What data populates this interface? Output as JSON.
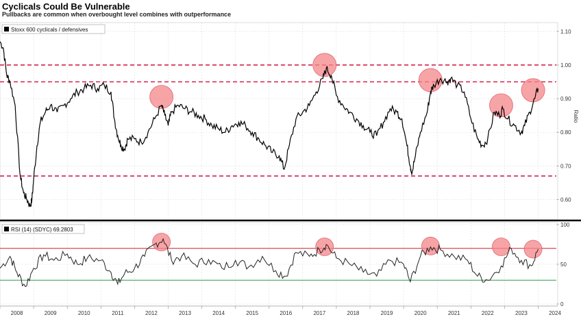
{
  "header": {
    "title": "Cyclicals Could Be Vulnerable",
    "subtitle": "Pullbacks are common when overbought level combines with outperformance"
  },
  "chart_data": [
    {
      "type": "line",
      "legend": "Stoxx 600 cyclicals / defensives",
      "legend_placement": "top-left",
      "ylabel": "Ratio",
      "ylim": [
        0.55,
        1.12
      ],
      "yticks": [
        "0.60",
        "0.70",
        "0.80",
        "0.90",
        "1.00",
        "1.10"
      ],
      "reference_lines": [
        1.0,
        0.95,
        0.67
      ],
      "reference_color": "#d6204e",
      "line_color": "#000000",
      "highlight_color": "#f4868a",
      "highlights": [
        {
          "x": 2012.8,
          "y": 0.905
        },
        {
          "x": 2017.65,
          "y": 1.0
        },
        {
          "x": 2020.8,
          "y": 0.955
        },
        {
          "x": 2022.9,
          "y": 0.88
        },
        {
          "x": 2023.85,
          "y": 0.925
        }
      ],
      "series": [
        {
          "x": [
            2008.0,
            2008.1,
            2008.2,
            2008.3,
            2008.45,
            2008.6,
            2008.7,
            2008.8,
            2008.9,
            2008.95,
            2009.0,
            2009.1,
            2009.2,
            2009.35,
            2009.5,
            2009.7,
            2009.9,
            2010.1,
            2010.3,
            2010.5,
            2010.7,
            2010.9,
            2011.1,
            2011.3,
            2011.4,
            2011.5,
            2011.6,
            2011.7,
            2011.8,
            2012.0,
            2012.2,
            2012.4,
            2012.6,
            2012.8,
            2012.9,
            2013.0,
            2013.1,
            2013.3,
            2013.5,
            2013.7,
            2013.9,
            2014.1,
            2014.3,
            2014.5,
            2014.7,
            2014.9,
            2015.1,
            2015.3,
            2015.5,
            2015.7,
            2015.9,
            2016.1,
            2016.3,
            2016.45,
            2016.6,
            2016.8,
            2017.0,
            2017.2,
            2017.4,
            2017.6,
            2017.7,
            2017.85,
            2018.0,
            2018.2,
            2018.4,
            2018.6,
            2018.8,
            2019.0,
            2019.2,
            2019.4,
            2019.6,
            2019.8,
            2019.95,
            2020.1,
            2020.2,
            2020.25,
            2020.35,
            2020.5,
            2020.7,
            2020.8,
            2020.9,
            2021.1,
            2021.3,
            2021.4,
            2021.6,
            2021.8,
            2022.0,
            2022.2,
            2022.35,
            2022.5,
            2022.7,
            2022.85,
            2022.95,
            2023.1,
            2023.3,
            2023.5,
            2023.6,
            2023.75,
            2023.9,
            2024.0
          ],
          "y": [
            1.07,
            1.05,
            0.97,
            0.95,
            0.88,
            0.67,
            0.62,
            0.6,
            0.58,
            0.6,
            0.66,
            0.76,
            0.83,
            0.86,
            0.88,
            0.86,
            0.88,
            0.9,
            0.92,
            0.93,
            0.94,
            0.93,
            0.94,
            0.92,
            0.84,
            0.79,
            0.76,
            0.75,
            0.78,
            0.78,
            0.77,
            0.8,
            0.84,
            0.88,
            0.85,
            0.82,
            0.86,
            0.88,
            0.87,
            0.86,
            0.85,
            0.84,
            0.82,
            0.81,
            0.8,
            0.82,
            0.83,
            0.82,
            0.8,
            0.78,
            0.76,
            0.74,
            0.73,
            0.69,
            0.76,
            0.84,
            0.86,
            0.88,
            0.92,
            0.96,
            0.99,
            0.97,
            0.91,
            0.88,
            0.86,
            0.84,
            0.82,
            0.8,
            0.79,
            0.83,
            0.87,
            0.86,
            0.84,
            0.76,
            0.7,
            0.68,
            0.73,
            0.8,
            0.86,
            0.92,
            0.94,
            0.96,
            0.95,
            0.96,
            0.94,
            0.92,
            0.84,
            0.78,
            0.76,
            0.78,
            0.86,
            0.85,
            0.87,
            0.84,
            0.82,
            0.8,
            0.82,
            0.86,
            0.9,
            0.93
          ]
        }
      ]
    },
    {
      "type": "line",
      "legend": "RSI (14) (SDYC) 69.2803",
      "legend_placement": "top-left",
      "ylim": [
        0,
        100
      ],
      "yticks": [
        "0",
        "50",
        "100"
      ],
      "xlabels": [
        "2008",
        "2009",
        "2010",
        "2011",
        "2012",
        "2013",
        "2014",
        "2015",
        "2016",
        "2017",
        "2018",
        "2019",
        "2020",
        "2021",
        "2022",
        "2023",
        "2024"
      ],
      "overbought_level": 70,
      "overbought_color": "#c9202a",
      "oversold_level": 30,
      "oversold_color": "#2e9c4a",
      "line_color": "#222222",
      "highlights": [
        {
          "x": 2012.8,
          "y": 78
        },
        {
          "x": 2017.65,
          "y": 72
        },
        {
          "x": 2020.8,
          "y": 73
        },
        {
          "x": 2022.9,
          "y": 72
        },
        {
          "x": 2023.85,
          "y": 69
        }
      ],
      "series": [
        {
          "x": [
            2008.0,
            2008.3,
            2008.5,
            2008.75,
            2009.0,
            2009.3,
            2009.6,
            2010.0,
            2010.3,
            2010.6,
            2011.0,
            2011.3,
            2011.5,
            2011.7,
            2012.0,
            2012.3,
            2012.6,
            2012.85,
            2013.1,
            2013.4,
            2013.8,
            2014.2,
            2014.6,
            2015.0,
            2015.4,
            2015.8,
            2016.2,
            2016.5,
            2016.8,
            2017.2,
            2017.5,
            2017.7,
            2018.0,
            2018.4,
            2018.8,
            2019.2,
            2019.6,
            2020.0,
            2020.2,
            2020.5,
            2020.8,
            2021.1,
            2021.5,
            2021.9,
            2022.2,
            2022.5,
            2022.9,
            2023.2,
            2023.5,
            2023.8,
            2024.0
          ],
          "y": [
            45,
            60,
            40,
            22,
            45,
            62,
            55,
            63,
            50,
            58,
            55,
            40,
            25,
            38,
            45,
            60,
            75,
            82,
            55,
            60,
            50,
            56,
            45,
            55,
            47,
            60,
            42,
            35,
            65,
            60,
            68,
            75,
            58,
            50,
            40,
            35,
            55,
            50,
            28,
            60,
            72,
            68,
            60,
            55,
            35,
            30,
            48,
            70,
            55,
            48,
            69
          ]
        }
      ]
    }
  ]
}
